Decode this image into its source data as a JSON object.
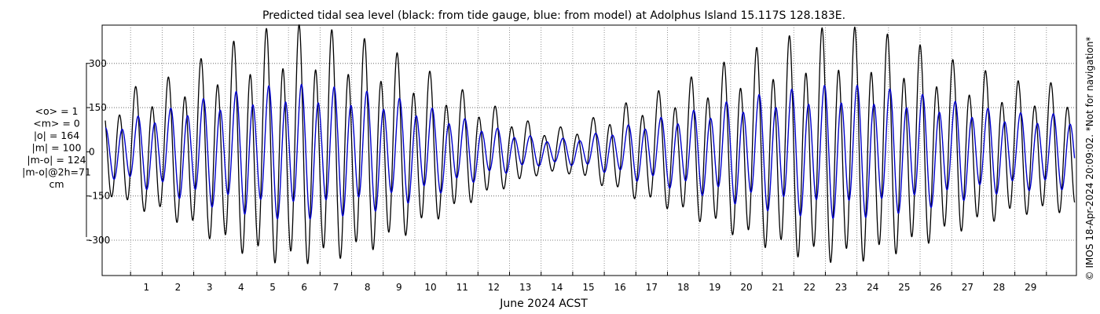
{
  "chart_data": {
    "type": "line",
    "title": "Predicted tidal sea level (black: from tide gauge, blue: from model) at Adolphus Island 15.117S 128.183E.",
    "xlabel": "June 2024 ACST",
    "ylabel": "",
    "x_tick_labels": [
      "1",
      "2",
      "3",
      "4",
      "5",
      "6",
      "7",
      "8",
      "9",
      "10",
      "11",
      "12",
      "13",
      "14",
      "15",
      "16",
      "17",
      "18",
      "19",
      "20",
      "21",
      "22",
      "23",
      "24",
      "25",
      "26",
      "27",
      "28",
      "29"
    ],
    "y_tick_labels": [
      "300",
      "150",
      "0",
      "-150",
      "-300"
    ],
    "y_ticks": [
      300,
      150,
      0,
      -150,
      -300
    ],
    "xlim": [
      0.1,
      30.95
    ],
    "ylim": [
      -420,
      430
    ],
    "grid": true,
    "stats_lines": [
      "<o> = 1",
      "<m> = 0",
      "|o| = 164",
      "|m| = 100",
      "|m-o| = 124",
      "|m-o|@2h=71",
      "cm"
    ],
    "series": [
      {
        "name": "from tide gauge",
        "color": "#000000",
        "envelope_x": [
          0.2,
          1,
          2,
          3,
          4,
          5,
          6,
          7,
          8,
          9,
          10,
          11,
          12,
          13,
          14,
          15,
          16,
          17,
          18,
          19,
          20,
          21,
          22,
          23,
          24,
          25,
          26,
          27,
          28,
          29,
          30.9
        ],
        "envelope_amplitude": [
          130,
          180,
          200,
          250,
          300,
          340,
          360,
          350,
          330,
          300,
          250,
          200,
          150,
          110,
          70,
          70,
          110,
          150,
          180,
          220,
          260,
          300,
          330,
          350,
          350,
          330,
          300,
          260,
          230,
          200,
          190
        ]
      },
      {
        "name": "from model",
        "color": "#0000cc",
        "envelope_x": [
          0.2,
          1,
          2,
          3,
          4,
          5,
          6,
          7,
          8,
          9,
          10,
          11,
          12,
          13,
          14,
          15,
          16,
          17,
          18,
          19,
          20,
          21,
          22,
          23,
          24,
          25,
          26,
          27,
          28,
          29,
          30.9
        ],
        "envelope_amplitude": [
          70,
          100,
          120,
          150,
          170,
          190,
          200,
          195,
          185,
          170,
          145,
          115,
          85,
          60,
          40,
          40,
          60,
          85,
          105,
          125,
          150,
          170,
          185,
          195,
          195,
          185,
          170,
          150,
          130,
          115,
          110
        ]
      }
    ]
  },
  "credit": "© IMOS 18-Apr-2024 20:09:02. *Not for navigation*"
}
